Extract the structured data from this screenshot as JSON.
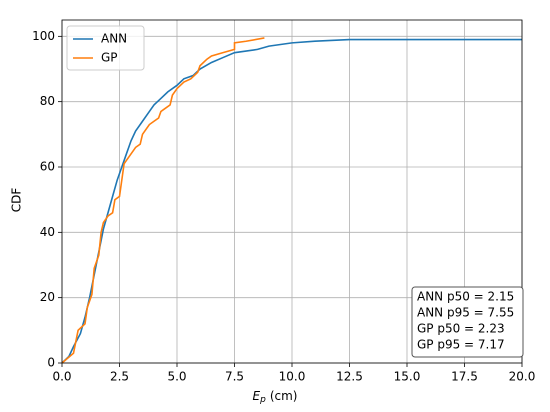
{
  "chart_data": {
    "type": "line",
    "xlabel": [
      "E",
      "p",
      "(cm)"
    ],
    "ylabel": "CDF",
    "xlim": [
      0,
      20
    ],
    "ylim": [
      0,
      105
    ],
    "xticks": [
      {
        "value": 0,
        "label": "0.0"
      },
      2.5,
      {
        "value": 5,
        "label": "5.0"
      },
      7.5,
      {
        "value": 10,
        "label": "10.0"
      },
      12.5,
      {
        "value": 15,
        "label": "15.0"
      },
      17.5,
      {
        "value": 20,
        "label": "20.0"
      }
    ],
    "yticks": [
      0,
      20,
      40,
      60,
      80,
      100
    ],
    "grid": true,
    "legend": "upper-left",
    "annotation": [
      "ANN p50 = 2.15",
      "ANN p95 = 7.55",
      "GP p50 = 2.23",
      "GP p95 = 7.17"
    ],
    "series": [
      {
        "name": "ANN",
        "color": "#1f77b4",
        "x": [
          0,
          0.3,
          0.5,
          0.8,
          1.0,
          1.2,
          1.4,
          1.6,
          1.8,
          2.0,
          2.2,
          2.4,
          2.6,
          2.8,
          3.0,
          3.2,
          3.5,
          3.8,
          4.0,
          4.3,
          4.6,
          5.0,
          5.3,
          5.7,
          6.0,
          6.5,
          7.0,
          7.5,
          8.0,
          8.5,
          9.0,
          10.0,
          11.0,
          12.5,
          20.0
        ],
        "values": [
          0,
          2,
          5,
          9,
          14,
          20,
          27,
          34,
          41,
          46,
          51,
          56,
          60,
          64,
          68,
          71,
          74,
          77,
          79,
          81,
          83,
          85,
          87,
          88,
          90,
          92,
          93.5,
          95,
          95.5,
          96,
          97,
          98,
          98.5,
          99,
          99
        ]
      },
      {
        "name": "GP",
        "color": "#ff7f0e",
        "x": [
          0,
          0.5,
          0.7,
          1.0,
          1.1,
          1.3,
          1.4,
          1.6,
          1.7,
          1.8,
          2.0,
          2.2,
          2.3,
          2.5,
          2.6,
          2.7,
          2.8,
          3.0,
          3.2,
          3.4,
          3.5,
          3.8,
          4.0,
          4.2,
          4.3,
          4.5,
          4.7,
          4.8,
          5.0,
          5.3,
          5.6,
          5.9,
          6.0,
          6.3,
          6.5,
          7.0,
          7.5,
          7.5,
          8.0,
          8.8
        ],
        "values": [
          0,
          3,
          10,
          12,
          17,
          21,
          29,
          33,
          40,
          43,
          45,
          46,
          50,
          51,
          56,
          61,
          62,
          64,
          66,
          67,
          70,
          73,
          74,
          75,
          77,
          78,
          79,
          82,
          84,
          86,
          87,
          89,
          91,
          93,
          94,
          95,
          96,
          98,
          98.5,
          99.5
        ]
      }
    ]
  }
}
